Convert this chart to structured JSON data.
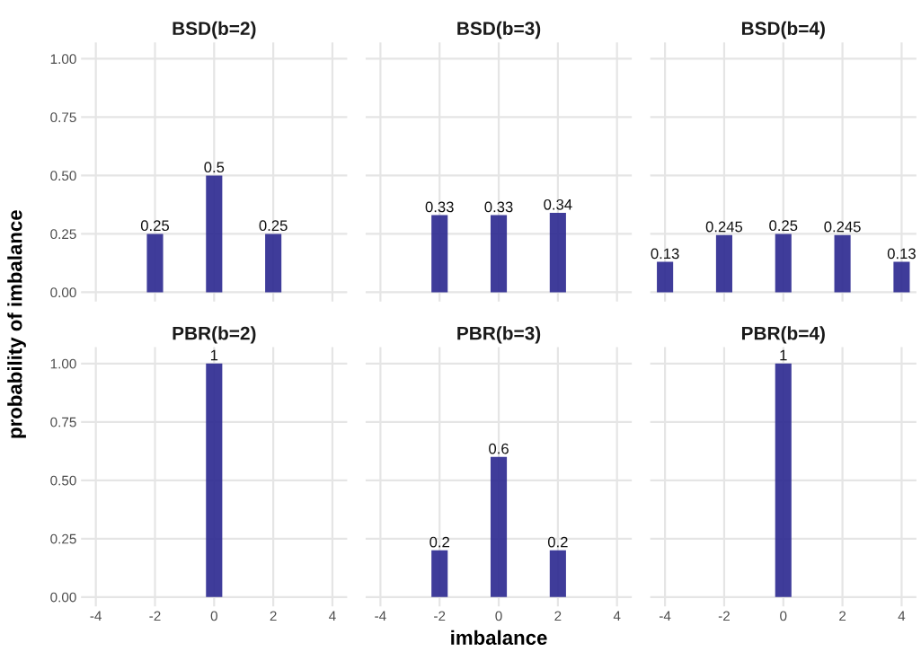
{
  "chart_data": [
    {
      "type": "bar",
      "title": "BSD(b=2)",
      "x": [
        -2,
        0,
        2
      ],
      "values": [
        0.25,
        0.5,
        0.25
      ],
      "color": "#2f2b91",
      "xlim": [
        -4.5,
        4.5
      ],
      "ylim": [
        -0.04,
        1.07
      ],
      "xticks": [
        {
          "value": -4,
          "label": null
        },
        {
          "value": -2,
          "label": null
        },
        {
          "value": 0,
          "label": null
        },
        {
          "value": 2,
          "label": null
        },
        {
          "value": 4,
          "label": null
        }
      ],
      "yticks": [
        {
          "value": 0,
          "label": "0.00"
        },
        {
          "value": 0.25,
          "label": "0.25"
        },
        {
          "value": 0.5,
          "label": "0.50"
        },
        {
          "value": 0.75,
          "label": "0.75"
        },
        {
          "value": 1,
          "label": "1.00"
        }
      ],
      "grid": true,
      "data_labels": true,
      "tick_labels": "y",
      "ylabel": "probability of imbalance"
    },
    {
      "type": "bar",
      "title": "BSD(b=3)",
      "x": [
        -2,
        0,
        2
      ],
      "values": [
        0.33,
        0.33,
        0.34
      ],
      "color": "#2f2b91",
      "xlim": [
        -4.5,
        4.5
      ],
      "ylim": [
        -0.04,
        1.07
      ],
      "xticks": [
        {
          "value": -4,
          "label": null
        },
        {
          "value": -2,
          "label": null
        },
        {
          "value": 0,
          "label": null
        },
        {
          "value": 2,
          "label": null
        },
        {
          "value": 4,
          "label": null
        }
      ],
      "yticks": [
        {
          "value": 0,
          "label": null
        },
        {
          "value": 0.25,
          "label": null
        },
        {
          "value": 0.5,
          "label": null
        },
        {
          "value": 0.75,
          "label": null
        },
        {
          "value": 1,
          "label": null
        }
      ],
      "grid": true,
      "data_labels": true,
      "tick_labels": false
    },
    {
      "type": "bar",
      "title": "BSD(b=4)",
      "x": [
        -4,
        -2,
        0,
        2,
        4
      ],
      "values": [
        0.13,
        0.245,
        0.25,
        0.245,
        0.13
      ],
      "color": "#2f2b91",
      "xlim": [
        -4.5,
        4.5
      ],
      "ylim": [
        -0.04,
        1.07
      ],
      "xticks": [
        {
          "value": -4,
          "label": null
        },
        {
          "value": -2,
          "label": null
        },
        {
          "value": 0,
          "label": null
        },
        {
          "value": 2,
          "label": null
        },
        {
          "value": 4,
          "label": null
        }
      ],
      "yticks": [
        {
          "value": 0,
          "label": null
        },
        {
          "value": 0.25,
          "label": null
        },
        {
          "value": 0.5,
          "label": null
        },
        {
          "value": 0.75,
          "label": null
        },
        {
          "value": 1,
          "label": null
        }
      ],
      "grid": true,
      "data_labels": true,
      "tick_labels": false
    },
    {
      "type": "bar",
      "title": "PBR(b=2)",
      "x": [
        0
      ],
      "values": [
        1
      ],
      "color": "#2f2b91",
      "xlim": [
        -4.5,
        4.5
      ],
      "ylim": [
        -0.04,
        1.07
      ],
      "xticks": [
        -4,
        -2,
        0,
        2,
        4
      ],
      "yticks": [
        {
          "value": 0,
          "label": "0.00"
        },
        {
          "value": 0.25,
          "label": "0.25"
        },
        {
          "value": 0.5,
          "label": "0.50"
        },
        {
          "value": 0.75,
          "label": "0.75"
        },
        {
          "value": 1,
          "label": "1.00"
        }
      ],
      "grid": true,
      "data_labels": true
    },
    {
      "type": "bar",
      "title": "PBR(b=3)",
      "x": [
        -2,
        0,
        2
      ],
      "values": [
        0.2,
        0.6,
        0.2
      ],
      "color": "#2f2b91",
      "xlim": [
        -4.5,
        4.5
      ],
      "ylim": [
        -0.04,
        1.07
      ],
      "xticks": [
        -4,
        -2,
        0,
        2,
        4
      ],
      "yticks": [
        {
          "value": 0,
          "label": null
        },
        {
          "value": 0.25,
          "label": null
        },
        {
          "value": 0.5,
          "label": null
        },
        {
          "value": 0.75,
          "label": null
        },
        {
          "value": 1,
          "label": null
        }
      ],
      "grid": true,
      "data_labels": true,
      "tick_labels": "x",
      "xlabel": "imbalance"
    },
    {
      "type": "bar",
      "title": "PBR(b=4)",
      "x": [
        0
      ],
      "values": [
        1
      ],
      "color": "#2f2b91",
      "xlim": [
        -4.5,
        4.5
      ],
      "ylim": [
        -0.04,
        1.07
      ],
      "xticks": [
        -4,
        -2,
        0,
        2,
        4
      ],
      "yticks": [
        {
          "value": 0,
          "label": null
        },
        {
          "value": 0.25,
          "label": null
        },
        {
          "value": 0.5,
          "label": null
        },
        {
          "value": 0.75,
          "label": null
        },
        {
          "value": 1,
          "label": null
        }
      ],
      "grid": true,
      "data_labels": true,
      "tick_labels": "x"
    }
  ]
}
